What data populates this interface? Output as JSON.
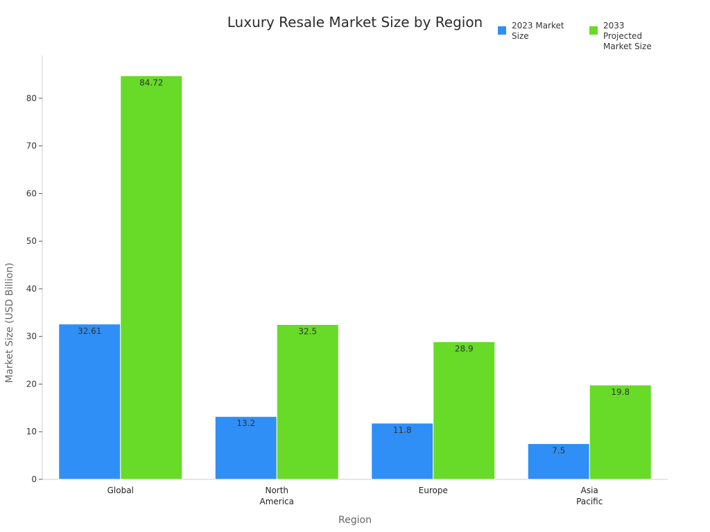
{
  "chart_data": {
    "type": "bar",
    "title": "Luxury Resale Market Size by Region",
    "xlabel": "Region",
    "ylabel": "Market Size (USD Billion)",
    "categories": [
      [
        "Global"
      ],
      [
        "North",
        "America"
      ],
      [
        "Europe"
      ],
      [
        "Asia",
        "Pacific"
      ]
    ],
    "series": [
      {
        "name": "2023 Market Size",
        "values": [
          32.61,
          13.2,
          11.8,
          7.5
        ],
        "color": "#2f8ff7"
      },
      {
        "name": "2033 Projected Market Size",
        "values": [
          84.72,
          32.5,
          28.9,
          19.8
        ],
        "color": "#67db28"
      }
    ],
    "ylim": [
      0,
      89
    ],
    "yticks": [
      0,
      10,
      20,
      30,
      40,
      50,
      60,
      70,
      80
    ],
    "legend_position": "top-right",
    "grid": false
  }
}
